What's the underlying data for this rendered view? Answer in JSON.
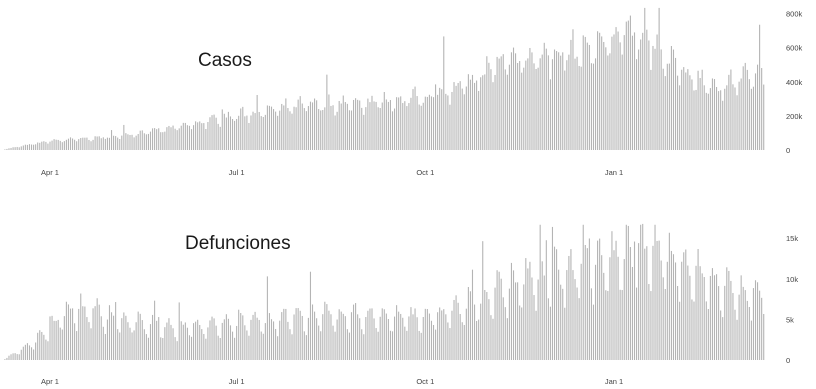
{
  "chart_data": [
    {
      "type": "bar",
      "title": "Casos",
      "x_tick_labels": [
        "Apr 1",
        "Jul 1",
        "Oct 1",
        "Jan 1"
      ],
      "y_tick_labels": [
        "0",
        "200k",
        "400k",
        "600k",
        "800k"
      ],
      "ylim": [
        0,
        850000
      ],
      "grid": false,
      "bar_color": "#b4b4b4",
      "series": [
        {
          "x_start": "2020-03-10",
          "x_end": "2021-03-15",
          "weekly_pattern": [
            0.78,
            0.88,
            1.0,
            1.04,
            1.08,
            0.98,
            0.9
          ],
          "trend_points": [
            {
              "x": "2020-03-10",
              "y": 5000
            },
            {
              "x": "2020-04-01",
              "y": 55000
            },
            {
              "x": "2020-05-01",
              "y": 80000
            },
            {
              "x": "2020-06-01",
              "y": 135000
            },
            {
              "x": "2020-07-01",
              "y": 210000
            },
            {
              "x": "2020-08-01",
              "y": 270000
            },
            {
              "x": "2020-09-01",
              "y": 290000
            },
            {
              "x": "2020-10-01",
              "y": 320000
            },
            {
              "x": "2020-10-20",
              "y": 390000
            },
            {
              "x": "2020-11-10",
              "y": 560000
            },
            {
              "x": "2020-12-01",
              "y": 575000
            },
            {
              "x": "2020-12-20",
              "y": 620000
            },
            {
              "x": "2021-01-05",
              "y": 700000
            },
            {
              "x": "2021-01-12",
              "y": 720000
            },
            {
              "x": "2021-02-01",
              "y": 500000
            },
            {
              "x": "2021-02-20",
              "y": 380000
            },
            {
              "x": "2021-03-15",
              "y": 470000
            }
          ]
        }
      ]
    },
    {
      "type": "bar",
      "title": "Defunciones",
      "x_tick_labels": [
        "Apr 1",
        "Jul 1",
        "Oct 1",
        "Jan 1"
      ],
      "y_tick_labels": [
        "0",
        "5k",
        "10k",
        "15k"
      ],
      "ylim": [
        0,
        17000
      ],
      "grid": false,
      "bar_color": "#b4b4b4",
      "series": [
        {
          "x_start": "2020-03-10",
          "x_end": "2021-03-15",
          "weekly_pattern": [
            0.6,
            0.95,
            1.18,
            1.12,
            1.05,
            0.9,
            0.7
          ],
          "trend_points": [
            {
              "x": "2020-03-10",
              "y": 100
            },
            {
              "x": "2020-03-25",
              "y": 2500
            },
            {
              "x": "2020-04-10",
              "y": 6500
            },
            {
              "x": "2020-04-25",
              "y": 6200
            },
            {
              "x": "2020-05-10",
              "y": 4800
            },
            {
              "x": "2020-06-01",
              "y": 4200
            },
            {
              "x": "2020-07-01",
              "y": 4800
            },
            {
              "x": "2020-07-25",
              "y": 5500
            },
            {
              "x": "2020-08-20",
              "y": 5800
            },
            {
              "x": "2020-09-20",
              "y": 5500
            },
            {
              "x": "2020-10-10",
              "y": 5800
            },
            {
              "x": "2020-10-25",
              "y": 7500
            },
            {
              "x": "2020-11-20",
              "y": 10500
            },
            {
              "x": "2020-12-15",
              "y": 11800
            },
            {
              "x": "2021-01-05",
              "y": 13500
            },
            {
              "x": "2021-01-22",
              "y": 14500
            },
            {
              "x": "2021-02-05",
              "y": 12000
            },
            {
              "x": "2021-02-25",
              "y": 9000
            },
            {
              "x": "2021-03-15",
              "y": 8500
            }
          ]
        }
      ]
    }
  ]
}
